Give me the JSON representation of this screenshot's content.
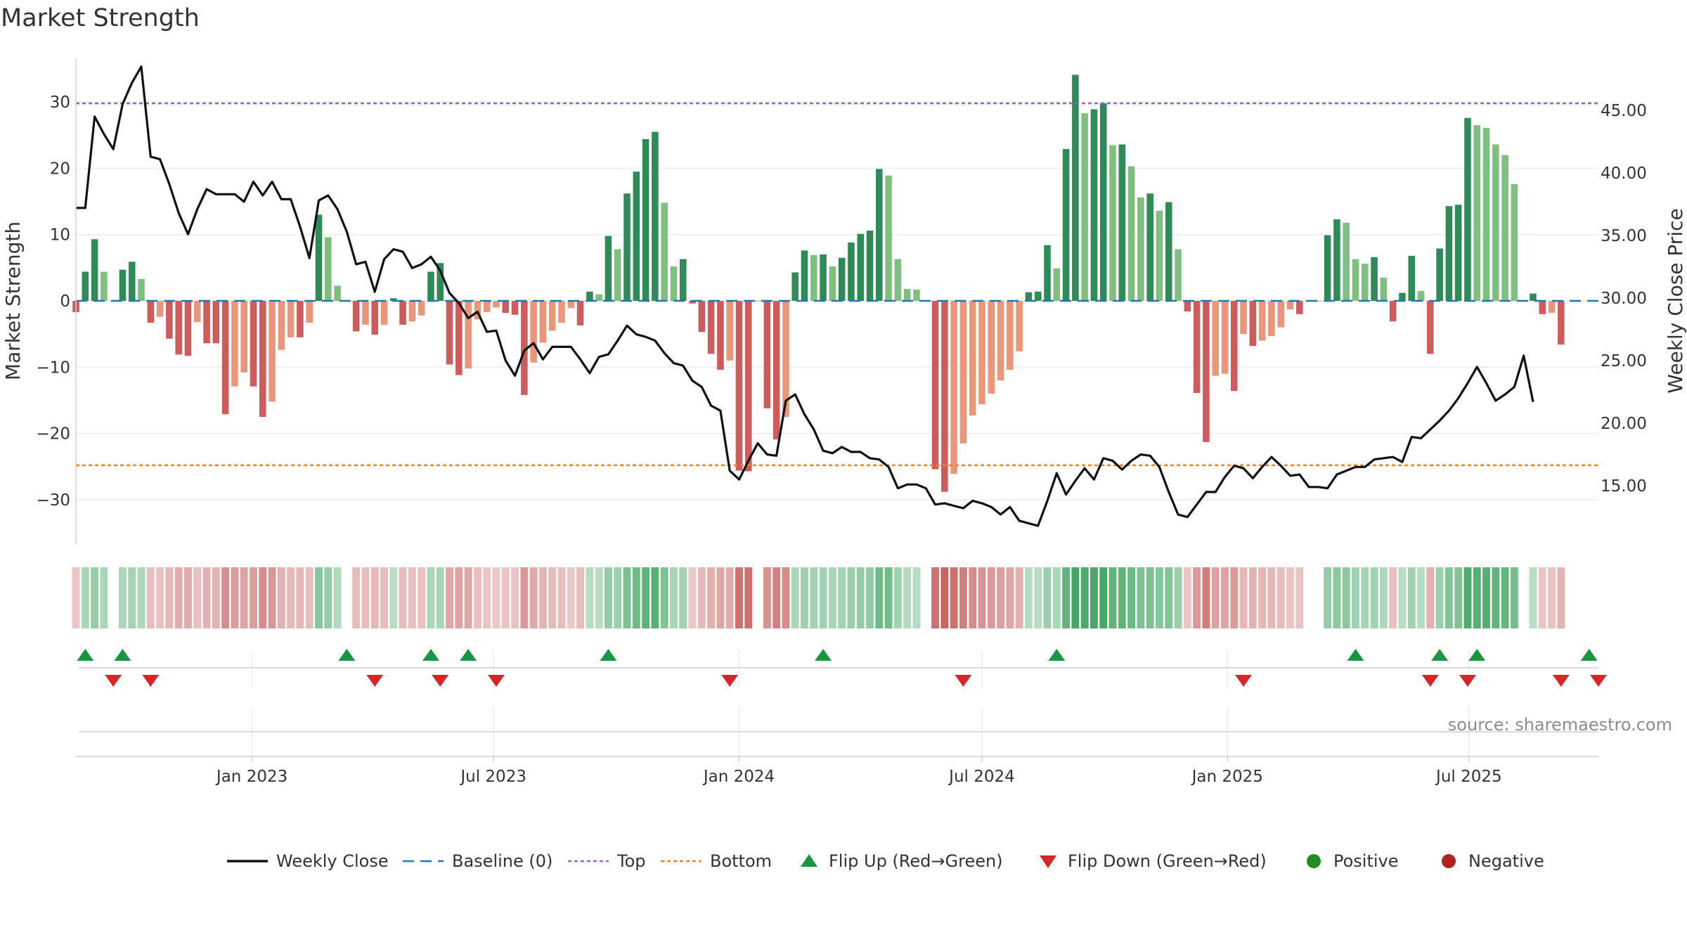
{
  "chart_data": {
    "type": "bar",
    "title": "Market Strength",
    "ylabel": "Market Strength",
    "y2label": "Weekly Close Price",
    "ylim": [
      -37,
      37
    ],
    "y2lim": [
      5.6,
      51.8
    ],
    "yticks": [
      30,
      20,
      10,
      0,
      -10,
      -20,
      -30
    ],
    "ytick_labels": [
      "30",
      "20",
      "10",
      "0",
      "−10",
      "−20",
      "−30"
    ],
    "y2ticks": [
      45,
      40,
      35,
      30,
      25,
      20,
      15
    ],
    "y2tick_labels": [
      "45.00",
      "40.00",
      "35.00",
      "30.00",
      "25.00",
      "20.00",
      "15.00"
    ],
    "x_start": "2022-08-22",
    "x_end": "2025-10-06",
    "x_ticks": [
      "2023-01-01",
      "2023-07-01",
      "2024-01-01",
      "2024-07-01",
      "2025-01-01",
      "2025-07-01"
    ],
    "x_tick_labels": [
      "Jan 2023",
      "Jul 2023",
      "Jan 2024",
      "Jul 2024",
      "Jan 2025",
      "Jul 2025"
    ],
    "grid": true,
    "legend_position": "bottom",
    "top_level": 29.8,
    "bottom_level": -24.8,
    "baseline": 0,
    "colors": {
      "pos_dark": "#2e8b57",
      "pos_light": "#7fbf7f",
      "neg_dark": "#cd5c5c",
      "neg_light": "#e9967a",
      "close": "#111111",
      "baseline": "#1f77b4",
      "top": "#9467bd",
      "bottom": "#ff7f0e",
      "flip_up": "#1a9641",
      "flip_down": "#d62728",
      "positive": "#228b22",
      "negative": "#b22222"
    },
    "series": [
      {
        "name": "Market Strength",
        "x_first": "2022-08-22",
        "interval_days": 7,
        "values": [
          -1.7,
          4.4,
          9.3,
          4.4,
          0,
          4.7,
          5.9,
          3.3,
          -3.3,
          -2.4,
          -5.7,
          -8.1,
          -8.3,
          -3.2,
          -6.4,
          -6.4,
          -17.1,
          -12.9,
          -10.8,
          -12.9,
          -17.5,
          -15.2,
          -7.4,
          -5.5,
          -5.5,
          -3.3,
          13.0,
          9.6,
          2.3,
          0,
          -4.6,
          -3.6,
          -5.1,
          -3.6,
          0.4,
          -3.6,
          -3.1,
          -2.2,
          4.4,
          5.7,
          -9.6,
          -11.2,
          -10.2,
          -2.8,
          -1.7,
          -1.0,
          -1.8,
          -2.1,
          -14.2,
          -9.3,
          -6.3,
          -4.5,
          -3.3,
          -1.1,
          -3.7,
          1.4,
          1.0,
          9.8,
          7.8,
          16.2,
          19.5,
          24.4,
          25.5,
          14.8,
          5.2,
          6.3,
          -0.4,
          -4.7,
          -8.0,
          -10.4,
          -9.0,
          -25.6,
          -25.7,
          0,
          -16.2,
          -20.9,
          -17.5,
          4.3,
          7.6,
          6.9,
          7.0,
          5.2,
          6.5,
          8.8,
          10.1,
          10.6,
          19.9,
          18.9,
          6.3,
          1.8,
          1.7,
          0,
          -25.4,
          -28.8,
          -26.1,
          -21.5,
          -17.3,
          -15.6,
          -14.0,
          -12.0,
          -10.4,
          -7.6,
          1.3,
          1.4,
          8.4,
          4.9,
          22.9,
          34.1,
          28.3,
          28.9,
          29.8,
          23.5,
          23.6,
          20.3,
          15.6,
          16.2,
          13.6,
          14.9,
          7.8,
          -1.6,
          -13.9,
          -21.3,
          -11.3,
          -11.0,
          -13.6,
          -5.0,
          -6.8,
          -6.0,
          -5.3,
          -4.0,
          -1.3,
          -2.0,
          0,
          0,
          9.9,
          12.3,
          11.8,
          6.3,
          5.6,
          6.6,
          3.5,
          -3.1,
          1.2,
          6.8,
          1.5,
          -8.0,
          7.9,
          14.3,
          14.5,
          27.6,
          26.5,
          26.1,
          23.6,
          22.0,
          17.6,
          0,
          1.1,
          -2.0,
          -1.8,
          -6.6
        ]
      },
      {
        "name": "Weekly Close",
        "x_first": "2022-08-22",
        "interval_days": 7,
        "values": [
          37.2,
          37.2,
          44.5,
          43.1,
          41.9,
          45.5,
          47.2,
          48.5,
          41.3,
          41.1,
          39.1,
          36.8,
          35.1,
          37.1,
          38.7,
          38.3,
          38.3,
          38.3,
          37.7,
          39.3,
          38.2,
          39.3,
          37.9,
          37.9,
          35.7,
          33.2,
          37.8,
          38.2,
          37.1,
          35.3,
          32.7,
          32.9,
          30.5,
          33.1,
          33.9,
          33.7,
          32.4,
          32.7,
          33.3,
          32.2,
          30.4,
          29.6,
          28.4,
          28.9,
          27.3,
          27.4,
          25.0,
          23.8,
          25.8,
          26.4,
          25.1,
          26.1,
          26.1,
          26.1,
          25.1,
          24.0,
          25.3,
          25.5,
          26.6,
          27.8,
          27.1,
          26.9,
          26.6,
          25.6,
          24.8,
          24.6,
          23.4,
          22.9,
          21.4,
          21.0,
          16.2,
          15.5,
          17.0,
          18.4,
          17.5,
          17.4,
          21.8,
          22.3,
          20.7,
          19.5,
          17.8,
          17.6,
          18.1,
          17.7,
          17.7,
          17.2,
          17.1,
          16.5,
          14.8,
          15.1,
          15.1,
          14.8,
          13.5,
          13.6,
          13.4,
          13.2,
          13.8,
          13.6,
          13.3,
          12.7,
          13.3,
          12.2,
          12.0,
          11.8,
          13.8,
          16.0,
          14.3,
          15.4,
          16.4,
          15.5,
          17.2,
          17.0,
          16.3,
          17.0,
          17.5,
          17.4,
          16.5,
          14.5,
          12.7,
          12.5,
          13.5,
          14.5,
          14.5,
          15.7,
          16.6,
          16.4,
          15.6,
          16.5,
          17.3,
          16.6,
          15.8,
          15.9,
          14.9,
          14.9,
          14.8,
          15.9,
          16.2,
          16.5,
          16.5,
          17.1,
          17.2,
          17.3,
          16.9,
          18.9,
          18.8,
          19.5,
          20.2,
          21.0,
          22.0,
          23.2,
          24.5,
          23.2,
          21.8,
          22.3,
          22.9,
          25.4,
          21.7
        ]
      }
    ],
    "strip_values": [
      -1.7,
      4.4,
      9.3,
      4.4,
      0,
      4.7,
      5.9,
      3.3,
      -3.3,
      -2.4,
      -5.7,
      -8.1,
      -8.3,
      -3.2,
      -6.4,
      -6.4,
      -17.1,
      -12.9,
      -10.8,
      -12.9,
      -17.5,
      -15.2,
      -7.4,
      -5.5,
      -5.5,
      -3.3,
      13.0,
      9.6,
      2.3,
      0,
      -4.6,
      -3.6,
      -5.1,
      -3.6,
      0.4,
      -3.6,
      -3.1,
      -2.2,
      4.4,
      5.7,
      -9.6,
      -11.2,
      -10.2,
      -2.8,
      -1.7,
      -1.0,
      -1.8,
      -2.1,
      -14.2,
      -9.3,
      -6.3,
      -4.5,
      -3.3,
      -1.1,
      -3.7,
      1.4,
      1.0,
      9.8,
      7.8,
      16.2,
      19.5,
      24.4,
      25.5,
      14.8,
      5.2,
      6.3,
      -0.4,
      -4.7,
      -8.0,
      -10.4,
      -9.0,
      -25.6,
      -25.7,
      0,
      -16.2,
      -20.9,
      -17.5,
      4.3,
      7.6,
      6.9,
      7.0,
      5.2,
      6.5,
      8.8,
      10.1,
      10.6,
      19.9,
      18.9,
      6.3,
      1.8,
      1.7,
      0,
      -25.4,
      -28.8,
      -26.1,
      -21.5,
      -17.3,
      -15.6,
      -14.0,
      -12.0,
      -10.4,
      -7.6,
      1.3,
      1.4,
      8.4,
      4.9,
      22.9,
      34.1,
      28.3,
      28.9,
      29.8,
      23.5,
      23.6,
      20.3,
      15.6,
      16.2,
      13.6,
      14.9,
      7.8,
      -1.6,
      -13.9,
      -21.3,
      -11.3,
      -11.0,
      -13.6,
      -5.0,
      -6.8,
      -6.0,
      -5.3,
      -4.0,
      -1.3,
      -2.0,
      0,
      0,
      9.9,
      12.3,
      11.8,
      6.3,
      5.6,
      6.6,
      3.5,
      -3.1,
      1.2,
      6.8,
      1.5,
      -8.0,
      7.9,
      14.3,
      14.5,
      27.6,
      26.5,
      26.1,
      23.6,
      22.0,
      17.6,
      0,
      1.1,
      -2.0,
      -1.8,
      -6.6
    ],
    "flip_up_dates": [
      "2022-08-29",
      "2022-09-26",
      "2023-03-13",
      "2023-05-15",
      "2023-06-12",
      "2023-09-25",
      "2024-03-04",
      "2024-08-26",
      "2025-04-07",
      "2025-06-09",
      "2025-07-07",
      "2025-09-29"
    ],
    "flip_down_dates": [
      "2022-09-19",
      "2022-10-17",
      "2023-04-03",
      "2023-05-22",
      "2023-07-03",
      "2023-12-25",
      "2024-06-17",
      "2025-01-13",
      "2025-06-02",
      "2025-06-30",
      "2025-09-08",
      "2025-10-06"
    ],
    "legend": [
      {
        "label": "Weekly Close",
        "marker": "line-solid",
        "color": "#111111"
      },
      {
        "label": "Baseline (0)",
        "marker": "line-dash",
        "color": "#1f77b4"
      },
      {
        "label": "Top",
        "marker": "line-dot",
        "color": "#9467bd"
      },
      {
        "label": "Bottom",
        "marker": "line-dot",
        "color": "#ff7f0e"
      },
      {
        "label": "Flip Up (Red→Green)",
        "marker": "triangle-up",
        "color": "#1a9641"
      },
      {
        "label": "Flip Down (Green→Red)",
        "marker": "triangle-down",
        "color": "#d62728"
      },
      {
        "label": "Positive",
        "marker": "circle",
        "color": "#228b22"
      },
      {
        "label": "Negative",
        "marker": "circle",
        "color": "#b22222"
      }
    ],
    "source_text": "source: sharemaestro.com"
  }
}
